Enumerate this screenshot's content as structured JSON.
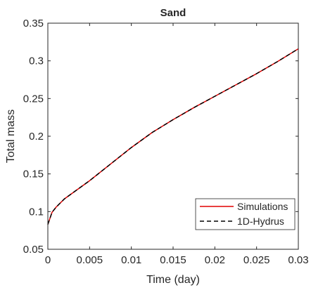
{
  "chart_data": {
    "type": "line",
    "title": "Sand",
    "xlabel": "Time (day)",
    "ylabel": "Total mass",
    "xlim": [
      0,
      0.03
    ],
    "ylim": [
      0.05,
      0.35
    ],
    "xticks": [
      0,
      0.005,
      0.01,
      0.015,
      0.02,
      0.025,
      0.03
    ],
    "xtick_labels": [
      "0",
      "0.005",
      "0.01",
      "0.015",
      "0.02",
      "0.025",
      "0.03"
    ],
    "yticks": [
      0.05,
      0.1,
      0.15,
      0.2,
      0.25,
      0.3,
      0.35
    ],
    "ytick_labels": [
      "0.05",
      "0.1",
      "0.15",
      "0.2",
      "0.25",
      "0.3",
      "0.35"
    ],
    "grid": false,
    "legend_position": "bottom-right",
    "series": [
      {
        "name": "Simulations",
        "color": "#e00000",
        "dash": "solid",
        "x": [
          0,
          0.0005,
          0.001,
          0.002,
          0.003,
          0.005,
          0.0075,
          0.01,
          0.0125,
          0.015,
          0.0175,
          0.02,
          0.0225,
          0.025,
          0.0275,
          0.03
        ],
        "y": [
          0.083,
          0.099,
          0.106,
          0.117,
          0.125,
          0.141,
          0.163,
          0.185,
          0.205,
          0.222,
          0.238,
          0.253,
          0.268,
          0.283,
          0.299,
          0.316
        ]
      },
      {
        "name": "1D-Hydrus",
        "color": "#000000",
        "dash": "dashed",
        "x": [
          0,
          0.0005,
          0.001,
          0.002,
          0.003,
          0.005,
          0.0075,
          0.01,
          0.0125,
          0.015,
          0.0175,
          0.02,
          0.0225,
          0.025,
          0.0275,
          0.03
        ],
        "y": [
          0.083,
          0.099,
          0.106,
          0.117,
          0.125,
          0.141,
          0.163,
          0.185,
          0.205,
          0.222,
          0.238,
          0.253,
          0.268,
          0.283,
          0.299,
          0.316
        ]
      }
    ]
  }
}
